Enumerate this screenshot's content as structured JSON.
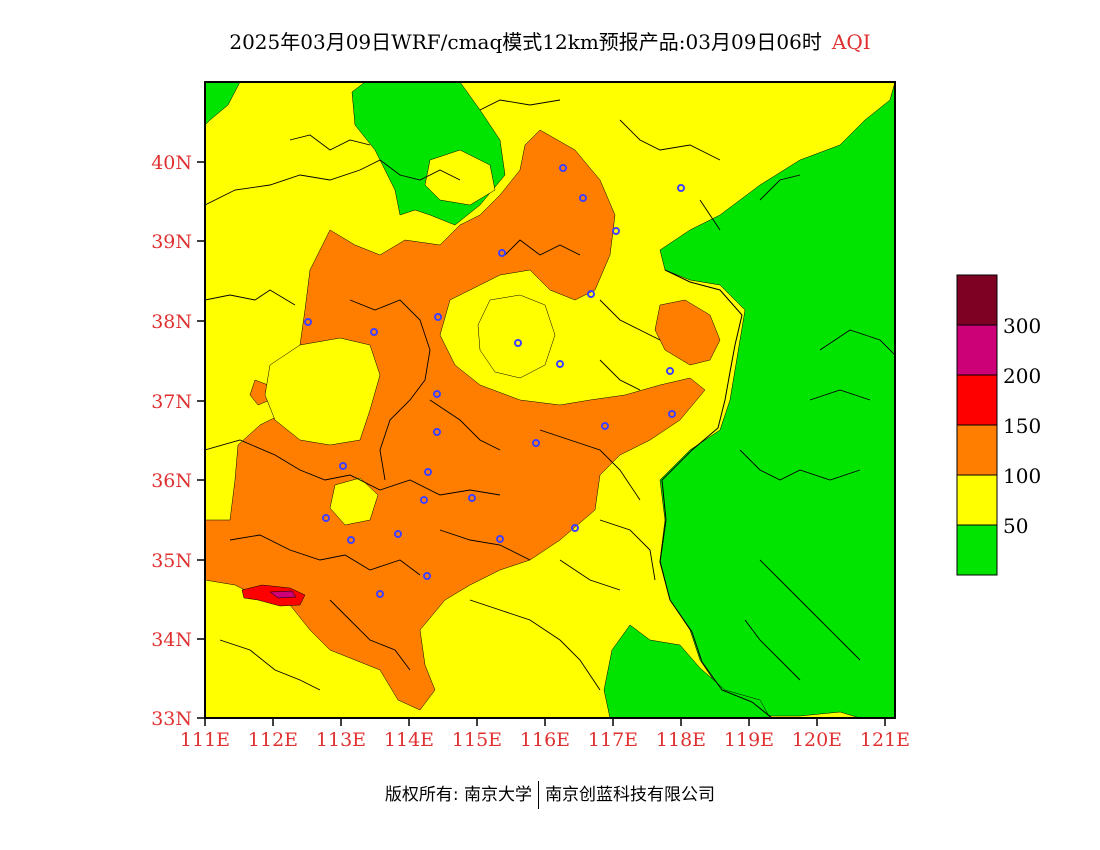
{
  "title": {
    "main": "2025年03月09日WRF/cmaq模式12km预报产品:03月09日06时",
    "variable": "AQI"
  },
  "map": {
    "lon_labels": [
      "111E",
      "112E",
      "113E",
      "114E",
      "115E",
      "116E",
      "117E",
      "118E",
      "119E",
      "120E",
      "121E"
    ],
    "lat_labels": [
      "40N",
      "39N",
      "38N",
      "37N",
      "36N",
      "35N",
      "34N",
      "33N"
    ],
    "city_markers": [
      "city-1",
      "city-2",
      "city-3",
      "city-4",
      "city-5",
      "city-6",
      "city-7",
      "city-8",
      "city-9",
      "city-10",
      "city-11",
      "city-12",
      "city-13",
      "city-14",
      "city-15",
      "city-16",
      "city-17",
      "city-18",
      "city-19",
      "city-20",
      "city-21",
      "city-22",
      "city-23",
      "city-24",
      "city-25",
      "city-26",
      "city-27",
      "city-28"
    ]
  },
  "legend": {
    "levels": [
      {
        "color": "#00e400",
        "label": ""
      },
      {
        "color": "#ffff00",
        "label": "50"
      },
      {
        "color": "#ff7e00",
        "label": "100"
      },
      {
        "color": "#ff0000",
        "label": "150"
      },
      {
        "color": "#cc0077",
        "label": "200"
      },
      {
        "color": "#7e0023",
        "label": "300"
      }
    ]
  },
  "colors": {
    "good": "#00e400",
    "moderate": "#ffff00",
    "unhealthy_sensitive": "#ff7e00",
    "unhealthy": "#ff0000",
    "very_unhealthy": "#cc0077",
    "hazardous": "#7e0023",
    "axis_label": "#e03030",
    "city_marker": "#4040ff"
  },
  "footer": {
    "copyright": "版权所有: 南京大学",
    "company": "南京创蓝科技有限公司"
  }
}
